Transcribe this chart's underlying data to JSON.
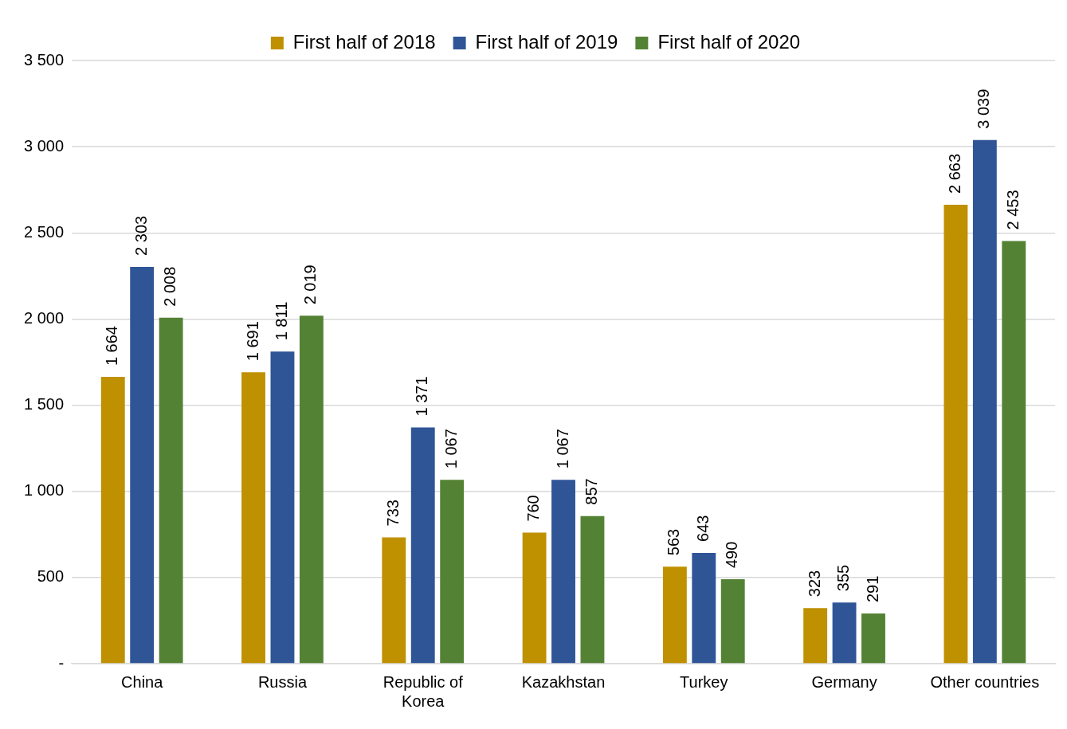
{
  "chart_data": {
    "type": "bar",
    "categories": [
      "China",
      "Russia",
      "Republic of Korea",
      "Kazakhstan",
      "Turkey",
      "Germany",
      "Other countries"
    ],
    "series": [
      {
        "name": "First half of 2018",
        "color": "#bf9000",
        "values": [
          1664,
          1691,
          733,
          760,
          563,
          323,
          2663
        ],
        "value_labels": [
          "1 664",
          "1 691",
          "733",
          "760",
          "563",
          "323",
          "2 663"
        ]
      },
      {
        "name": "First half of 2019",
        "color": "#2f5597",
        "values": [
          2303,
          1811,
          1371,
          1067,
          643,
          355,
          3039
        ],
        "value_labels": [
          "2 303",
          "1 811",
          "1 371",
          "1 067",
          "643",
          "355",
          "3 039"
        ]
      },
      {
        "name": "First half of 2020",
        "color": "#548235",
        "values": [
          2008,
          2019,
          1067,
          857,
          490,
          291,
          2453
        ],
        "value_labels": [
          "2 008",
          "2 019",
          "1 067",
          "857",
          "490",
          "291",
          "2 453"
        ]
      }
    ],
    "ylim": [
      0,
      3500
    ],
    "yticks": [
      {
        "value": 0,
        "label": "-"
      },
      500,
      {
        "value": 1000,
        "label": "1 000"
      },
      {
        "value": 1500,
        "label": "1 500"
      },
      {
        "value": 2000,
        "label": "2 000"
      },
      {
        "value": 2500,
        "label": "2 500"
      },
      {
        "value": 3000,
        "label": "3 000"
      },
      {
        "value": 3500,
        "label": "3 500"
      }
    ],
    "grid": "y",
    "legend": "top"
  }
}
